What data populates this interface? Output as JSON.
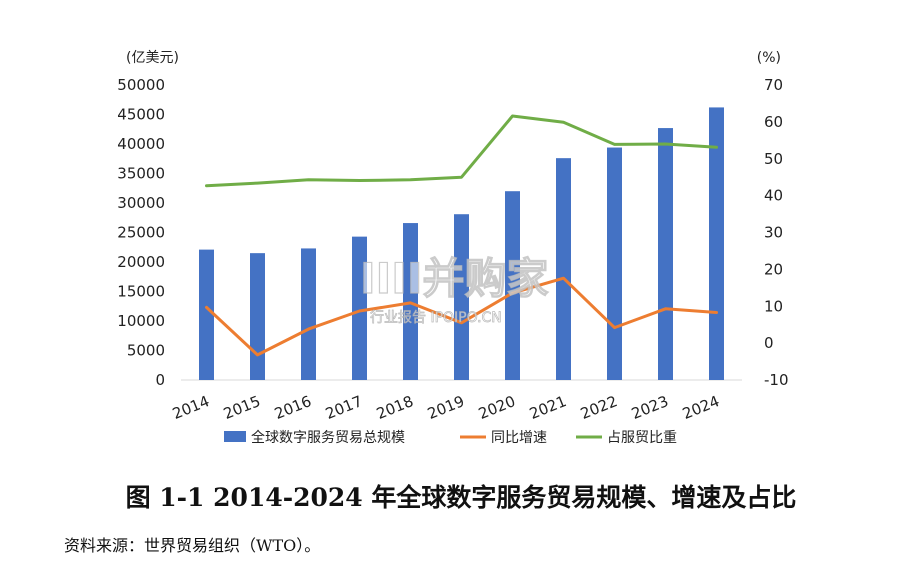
{
  "chart_data": {
    "type": "bar+line",
    "categories": [
      "2014",
      "2015",
      "2016",
      "2017",
      "2018",
      "2019",
      "2020",
      "2021",
      "2022",
      "2023",
      "2024"
    ],
    "left_axis": {
      "unit": "(亿美元)",
      "ticks": [
        "50000",
        "45000",
        "40000",
        "35000",
        "30000",
        "25000",
        "20000",
        "15000",
        "10000",
        "5000",
        "0"
      ],
      "range": [
        0,
        50000
      ]
    },
    "right_axis": {
      "unit": "(%)",
      "ticks": [
        "70",
        "60",
        "50",
        "40",
        "30",
        "20",
        "10",
        "0",
        "-10"
      ],
      "range": [
        -10,
        70
      ]
    },
    "series": [
      {
        "name": "全球数字服务贸易总规模",
        "type": "bar",
        "axis": "left",
        "color": "#4472C4",
        "values": [
          22100,
          21500,
          22300,
          24300,
          26600,
          28100,
          32000,
          37600,
          39400,
          42700,
          46200
        ]
      },
      {
        "name": "同比增速",
        "type": "line",
        "axis": "right",
        "color": "#ED7D31",
        "values": [
          9.7,
          -3.2,
          3.8,
          8.7,
          10.9,
          5.5,
          13.6,
          17.6,
          4.2,
          9.3,
          8.3
        ]
      },
      {
        "name": "占服贸比重",
        "type": "line",
        "axis": "right",
        "color": "#70AD47",
        "values": [
          42.7,
          43.4,
          44.3,
          44.1,
          44.3,
          45.0,
          61.6,
          59.9,
          53.9,
          54.0,
          53.1
        ]
      }
    ],
    "legend_position": "bottom",
    "grid": false
  },
  "watermark": {
    "main": "IIII并购家",
    "sub": "行业报告 IPOIPO.CN"
  },
  "caption": "图 1-1 2014-2024 年全球数字服务贸易规模、增速及占比",
  "source": "资料来源：世界贸易组织（WTO）。"
}
